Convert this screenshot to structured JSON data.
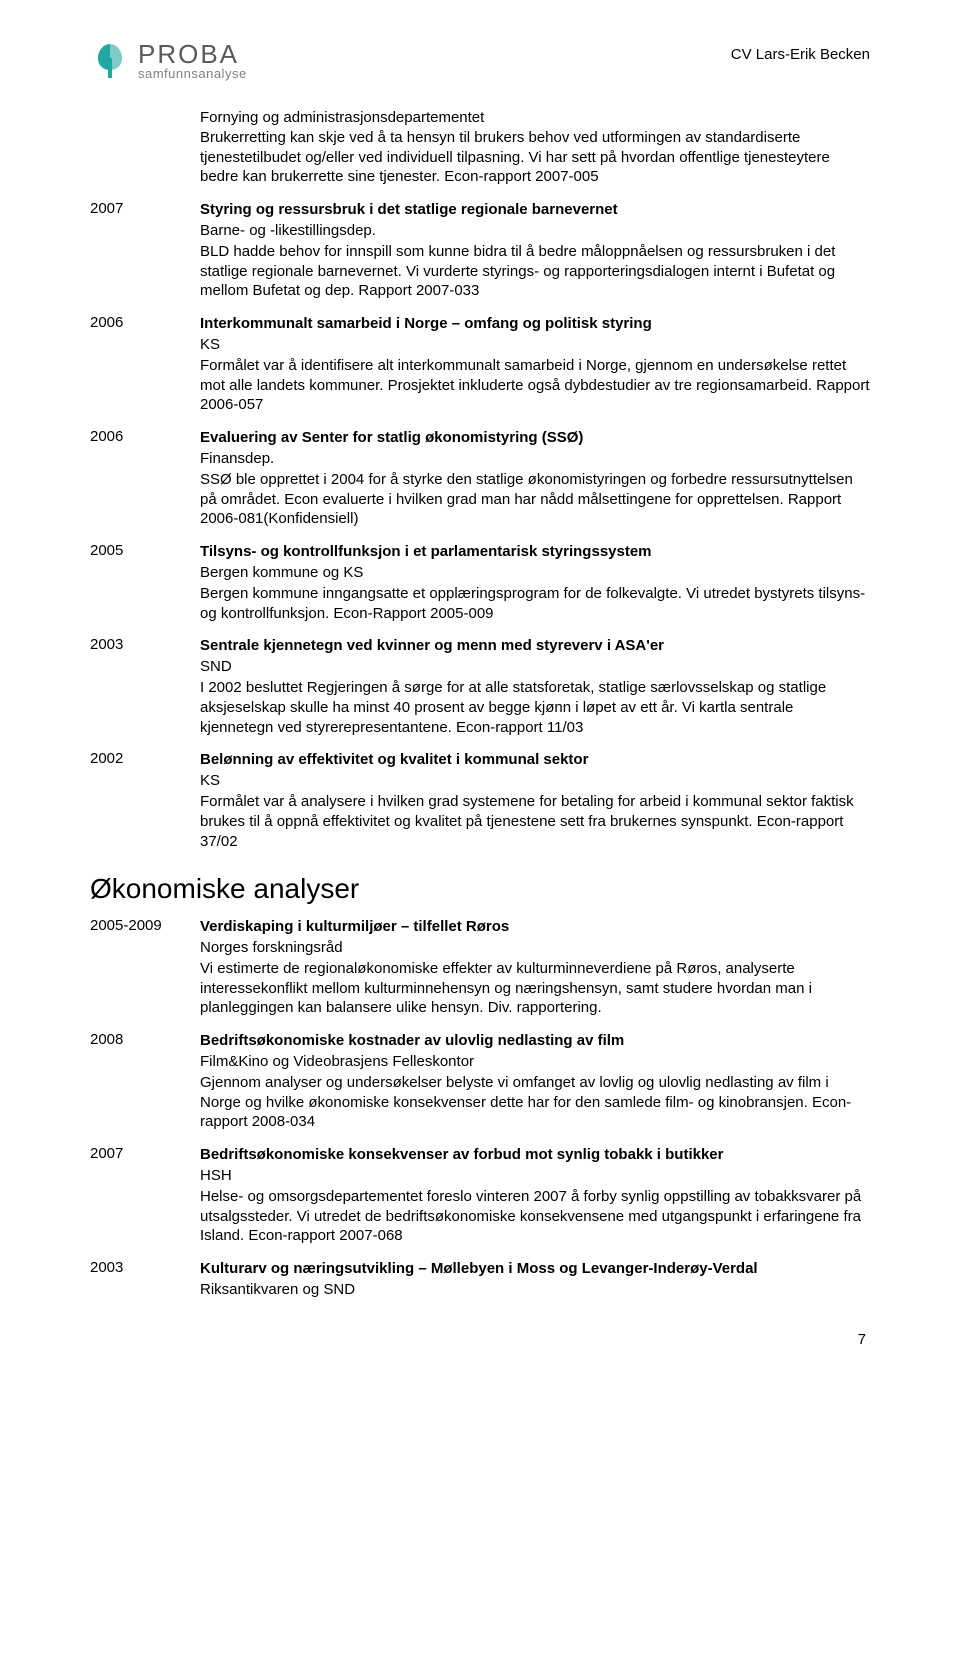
{
  "header": {
    "logo_main": "PROBA",
    "logo_sub": "samfunnsanalyse",
    "doc_title": "CV Lars-Erik Becken"
  },
  "intro": "Fornying og administrasjonsdepartementet\nBrukerretting kan skje ved å ta hensyn til brukers behov ved utformingen av standardiserte tjenestetilbudet og/eller ved individuell tilpasning. Vi har sett på hvordan offentlige tjenesteytere bedre kan brukerrette sine tjenester. Econ-rapport 2007-005",
  "entries_a": [
    {
      "year": "2007",
      "title": "Styring og ressursbruk i det statlige regionale barnevernet",
      "org": "Barne- og -likestillingsdep.",
      "desc": "BLD hadde behov for innspill som kunne bidra til å bedre måloppnåelsen og ressursbruken i det statlige regionale barnevernet. Vi vurderte styrings- og rapporteringsdialogen internt i Bufetat og mellom Bufetat og dep. Rapport 2007-033"
    },
    {
      "year": "2006",
      "title": "Interkommunalt samarbeid i Norge – omfang og politisk styring",
      "org": "KS",
      "desc": "Formålet var å identifisere alt interkommunalt samarbeid i Norge, gjennom en undersøkelse rettet mot alle landets kommuner. Prosjektet inkluderte også dybdestudier av tre regionsamarbeid. Rapport 2006-057"
    },
    {
      "year": "2006",
      "title": "Evaluering av Senter for statlig økonomistyring (SSØ)",
      "org": "Finansdep.",
      "desc": "SSØ ble opprettet i 2004 for å styrke den statlige økonomistyringen og forbedre ressursutnyttelsen på området. Econ evaluerte i hvilken grad man har nådd målsettingene for opprettelsen. Rapport 2006-081(Konfidensiell)"
    },
    {
      "year": "2005",
      "title": "Tilsyns- og kontrollfunksjon i et parlamentarisk styringssystem",
      "org": "Bergen kommune og KS",
      "desc": "Bergen kommune inngangsatte et opplæringsprogram for de folkevalgte. Vi utredet bystyrets tilsyns- og kontrollfunksjon. Econ-Rapport 2005-009"
    },
    {
      "year": "2003",
      "title": "Sentrale kjennetegn ved kvinner og menn med styreverv i ASA'er",
      "org": "SND",
      "desc": "I 2002 besluttet Regjeringen å sørge for at alle statsforetak, statlige særlovsselskap og statlige aksjeselskap skulle ha minst 40 prosent av begge kjønn i løpet av ett år. Vi kartla sentrale kjennetegn ved styrerepresentantene. Econ-rapport 11/03"
    },
    {
      "year": "2002",
      "title": "Belønning av effektivitet og kvalitet i kommunal sektor",
      "org": "KS",
      "desc": "Formålet var å analysere i hvilken grad systemene for betaling for arbeid i kommunal sektor faktisk brukes til å oppnå effektivitet og kvalitet på tjenestene sett fra brukernes synspunkt. Econ-rapport 37/02"
    }
  ],
  "section_heading": "Økonomiske analyser",
  "entries_b": [
    {
      "year": "2005-2009",
      "title": "Verdiskaping i kulturmiljøer – tilfellet Røros",
      "org": "Norges forskningsråd",
      "desc": "Vi estimerte de regionaløkonomiske effekter av kulturminneverdiene på Røros, analyserte interessekonflikt mellom kulturminnehensyn og næringshensyn, samt studere hvordan man i planleggingen kan balansere ulike hensyn. Div. rapportering."
    },
    {
      "year": "2008",
      "title": "Bedriftsøkonomiske kostnader av ulovlig nedlasting av film",
      "org": "Film&Kino og Videobrasjens Felleskontor",
      "desc": "Gjennom analyser og undersøkelser belyste vi omfanget av lovlig og ulovlig nedlasting av film i Norge og hvilke økonomiske konsekvenser dette har for den samlede film- og kinobransjen. Econ-rapport 2008-034"
    },
    {
      "year": "2007",
      "title": "Bedriftsøkonomiske konsekvenser av forbud mot synlig tobakk i butikker",
      "org": "HSH",
      "desc": "Helse- og omsorgsdepartementet foreslo vinteren 2007 å forby synlig oppstilling av tobakksvarer på utsalgssteder. Vi utredet de bedriftsøkonomiske konsekvensene med utgangspunkt i erfaringene fra Island. Econ-rapport 2007-068"
    },
    {
      "year": "2003",
      "title": "Kulturarv og næringsutvikling – Møllebyen i Moss og Levanger-Inderøy-Verdal",
      "org": "Riksantikvaren og SND",
      "desc": ""
    }
  ],
  "page_number": "7",
  "colors": {
    "logo_teal": "#1fa9a0",
    "logo_grey": "#5a5a5a"
  }
}
